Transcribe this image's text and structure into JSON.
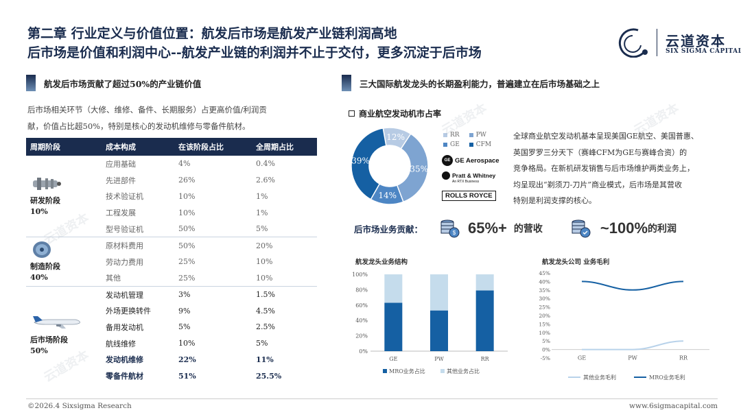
{
  "header": {
    "title_line1": "第二章 行业定义与价值位置：航发后市场是航发产业链利润高地",
    "title_line2": "后市场是价值和利润中心--航发产业链的利润并不止于交付，更多沉淀于后市场"
  },
  "logo": {
    "cn": "云道资本",
    "en": "SIX SIGMA CAPITAL"
  },
  "left": {
    "section_title": "航发后市场贡献了超过50%的产业链价值",
    "intro_line1": "后市场相关环节（大修、维修、备件、长期服务）占更高价值/利润贡",
    "intro_line2": "献，价值占比超50%，特别是核心的发动机维修与零备件航材。",
    "table": {
      "headers": [
        "周期阶段",
        "成本构成",
        "在该阶段占比",
        "全周期占比"
      ],
      "stages": [
        {
          "name": "研发阶段",
          "pct": "10%",
          "rows": [
            [
              "应用基础",
              "4%",
              "0.4%"
            ],
            [
              "先进部件",
              "26%",
              "2.6%"
            ],
            [
              "技术验证机",
              "10%",
              "1%"
            ],
            [
              "工程发展",
              "10%",
              "1%"
            ],
            [
              "型号验证机",
              "50%",
              "5%"
            ]
          ]
        },
        {
          "name": "制造阶段",
          "pct": "40%",
          "rows": [
            [
              "原材料费用",
              "50%",
              "20%"
            ],
            [
              "劳动力费用",
              "25%",
              "10%"
            ],
            [
              "其他",
              "25%",
              "10%"
            ]
          ]
        },
        {
          "name": "后市场阶段",
          "pct": "50%",
          "rows": [
            [
              "发动机管理",
              "3%",
              "1.5%"
            ],
            [
              "外场更换转件",
              "9%",
              "4.5%"
            ],
            [
              "备用发动机",
              "5%",
              "2.5%"
            ],
            [
              "航线维修",
              "10%",
              "5%"
            ],
            [
              "发动机维修",
              "22%",
              "11%"
            ],
            [
              "零备件航材",
              "51%",
              "25.5%"
            ]
          ]
        }
      ]
    }
  },
  "right": {
    "section_title": "三大国际航发龙头的长期盈利能力，普遍建立在后市场基础之上",
    "market_share_title": "商业航空发动机市占率",
    "pie": {
      "labels": [
        "RR",
        "PW",
        "GE",
        "CFM"
      ],
      "values": [
        12,
        35,
        14,
        39
      ],
      "display": [
        "12%",
        "35%",
        "14%",
        "39%"
      ],
      "colors": [
        "#b7cbe4",
        "#7ea4d1",
        "#4d86c4",
        "#1560a3"
      ]
    },
    "brands": [
      "GE Aerospace",
      "Pratt & Whitney",
      "ROLLS ROYCE"
    ],
    "brand_sub": "An RTX Business",
    "desc_lines": [
      "全球商业航空发动机基本呈现美国GE航空、美国普惠、",
      "英国罗罗三分天下（赛峰CFM为GE与赛峰合资）的",
      "竞争格局。在新机研发销售与后市场维护两类业务上，",
      "均呈现出“剃须刀-刀片”商业模式，后市场是其营收",
      "特别是利润支撑的核心。"
    ],
    "contribution": {
      "label": "后市场业务贡献：",
      "revenue_value": "65%+",
      "revenue_label": "的营收",
      "profit_value": "~100%",
      "profit_label": "的利润"
    }
  },
  "chart_data": [
    {
      "type": "bar",
      "title": "航发龙头业务结构",
      "categories": [
        "GE",
        "PW",
        "RR"
      ],
      "series": [
        {
          "name": "MRO业务占比",
          "values": [
            63,
            53,
            79
          ],
          "color": "#1560a3"
        },
        {
          "name": "其他业务占比",
          "values": [
            37,
            47,
            21
          ],
          "color": "#c5dcec"
        }
      ],
      "ylim": [
        0,
        100
      ],
      "yticks": [
        "0%",
        "20%",
        "40%",
        "60%",
        "80%",
        "100%"
      ],
      "stacked": true
    },
    {
      "type": "line",
      "title": "航发龙头公司 业务毛利",
      "categories": [
        "GE",
        "PW",
        "RR"
      ],
      "series": [
        {
          "name": "其他业务毛利",
          "values": [
            0,
            0,
            5
          ],
          "color": "#b8d2ea"
        },
        {
          "name": "MRO业务毛利",
          "values": [
            40,
            35,
            40
          ],
          "color": "#1560a3"
        }
      ],
      "ylim": [
        -5,
        45
      ],
      "yticks": [
        "-5%",
        "0%",
        "5%",
        "10%",
        "15%",
        "20%",
        "25%",
        "30%",
        "35%",
        "40%",
        "45%"
      ]
    }
  ],
  "footer": {
    "left": "©2026.4 Sixsigma Research",
    "right": "www.6sigmacapital.com"
  }
}
